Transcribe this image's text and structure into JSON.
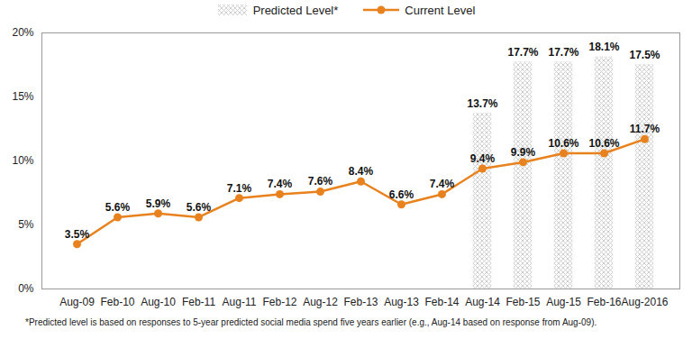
{
  "chart_data": {
    "type": "line",
    "categories": [
      "Aug-09",
      "Feb-10",
      "Aug-10",
      "Feb-11",
      "Aug-11",
      "Feb-12",
      "Aug-12",
      "Feb-13",
      "Aug-13",
      "Feb-14",
      "Aug-14",
      "Feb-15",
      "Aug-15",
      "Feb-16",
      "Aug-2016"
    ],
    "series": [
      {
        "name": "Predicted Level*",
        "type": "bar",
        "color": "#cfcfcf",
        "values": [
          null,
          null,
          null,
          null,
          null,
          null,
          null,
          null,
          null,
          null,
          13.7,
          17.7,
          17.7,
          18.1,
          17.5
        ],
        "value_labels": [
          null,
          null,
          null,
          null,
          null,
          null,
          null,
          null,
          null,
          null,
          "13.7%",
          "17.7%",
          "17.7%",
          "18.1%",
          "17.5%"
        ]
      },
      {
        "name": "Current Level",
        "type": "line",
        "color": "#e8821e",
        "marker": "circle",
        "values": [
          3.5,
          5.6,
          5.9,
          5.6,
          7.1,
          7.4,
          7.6,
          8.4,
          6.6,
          7.4,
          9.4,
          9.9,
          10.6,
          10.6,
          11.7
        ],
        "value_labels": [
          "3.5%",
          "5.6%",
          "5.9%",
          "5.6%",
          "7.1%",
          "7.4%",
          "7.6%",
          "8.4%",
          "6.6%",
          "7.4%",
          "9.4%",
          "9.9%",
          "10.6%",
          "10.6%",
          "11.7%"
        ]
      }
    ],
    "ylim": [
      0,
      20
    ],
    "yticks": [
      {
        "value": 0,
        "label": "0%"
      },
      {
        "value": 5,
        "label": "5%"
      },
      {
        "value": 10,
        "label": "10%"
      },
      {
        "value": 15,
        "label": "15%"
      },
      {
        "value": 20,
        "label": "20%"
      }
    ],
    "grid": false,
    "legend": "top",
    "data_labels": true,
    "caption": "*Predicted level is based on responses to 5-year predicted social media spend five years earlier (e.g., Aug-14 based on response from Aug-09)."
  }
}
